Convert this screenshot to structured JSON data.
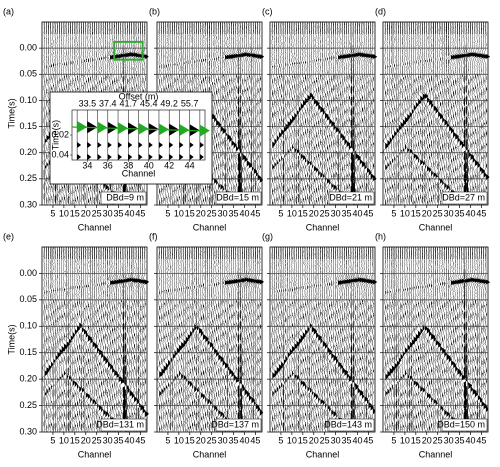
{
  "panels": [
    {
      "label": "(a)",
      "annotation": "DBd=9 m"
    },
    {
      "label": "(b)",
      "annotation": "DBd=15 m"
    },
    {
      "label": "(c)",
      "annotation": "DBd=21 m"
    },
    {
      "label": "(d)",
      "annotation": "DBd=27 m"
    },
    {
      "label": "(e)",
      "annotation": "DBd=131 m"
    },
    {
      "label": "(f)",
      "annotation": "DBd=137 m"
    },
    {
      "label": "(g)",
      "annotation": "DBd=143 m"
    },
    {
      "label": "(h)",
      "annotation": "DBd=150 m"
    }
  ],
  "y_axis": {
    "title": "Time(s)",
    "lim": [
      -0.05,
      0.3
    ],
    "ticks": [
      {
        "value": 0,
        "label": "0.00"
      },
      {
        "value": 0.05,
        "label": "0.05"
      },
      {
        "value": 0.1,
        "label": "0.10"
      },
      {
        "value": 0.15,
        "label": "0.15"
      },
      {
        "value": 0.2,
        "label": "0.20"
      },
      {
        "value": 0.25,
        "label": "0.25"
      },
      {
        "value": 0.3,
        "label": "0.30"
      }
    ]
  },
  "x_axis": {
    "title": "Channel",
    "lim": [
      0,
      48
    ],
    "ticks": [
      5,
      10,
      15,
      20,
      25,
      30,
      35,
      40,
      45
    ]
  },
  "inset": {
    "title": "Offset (m)",
    "offsets": [
      "33.5",
      "37.4",
      "41.7",
      "45.4",
      "49.2",
      "55.7"
    ],
    "x_title": "Channel",
    "xlim": [
      32.5,
      45.5
    ],
    "xticks": [
      34,
      36,
      38,
      40,
      42,
      44
    ],
    "y_title": "Time(s)",
    "ylim": [
      -0.005,
      0.045
    ],
    "yticks": [
      {
        "value": 0.02,
        "label": "0.02"
      },
      {
        "value": 0.04,
        "label": "0.04"
      }
    ]
  }
}
